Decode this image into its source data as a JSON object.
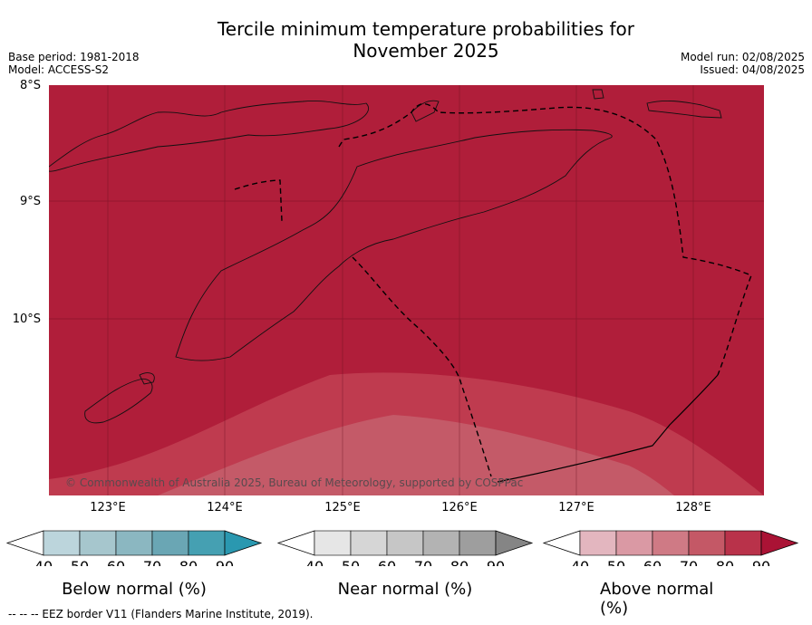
{
  "title_line1": "Tercile minimum temperature probabilities for",
  "title_line2": "November 2025",
  "base_period": "Base period: 1981-2018",
  "model": "Model: ACCESS-S2",
  "model_run": "Model run: 02/08/2025",
  "issued": "Issued: 04/08/2025",
  "lat_labels": [
    "8°S",
    "9°S",
    "10°S"
  ],
  "lon_labels": [
    "123°E",
    "124°E",
    "125°E",
    "126°E",
    "127°E",
    "128°E"
  ],
  "copyright": "© Commonwealth of Australia 2025, Bureau of Meteorology, supported by COSPPac",
  "colors": {
    "above_90": "#b01e3a",
    "above_80": "#bf3b4f",
    "above_70": "#c9566a"
  },
  "legends": [
    {
      "label": "Below normal (%)",
      "ticks": [
        "40",
        "50",
        "60",
        "70",
        "80",
        "90"
      ],
      "colors": [
        "#ffffff",
        "#bcd5dc",
        "#a6c6cd",
        "#8bb7c1",
        "#6aa6b4",
        "#45a0b2",
        "#2a98b0"
      ]
    },
    {
      "label": "Near normal (%)",
      "ticks": [
        "40",
        "50",
        "60",
        "70",
        "80",
        "90"
      ],
      "colors": [
        "#ffffff",
        "#e6e6e6",
        "#d6d6d6",
        "#c6c6c6",
        "#b3b3b3",
        "#9e9e9e",
        "#858585"
      ]
    },
    {
      "label": "Above normal (%)",
      "ticks": [
        "40",
        "50",
        "60",
        "70",
        "80",
        "90"
      ],
      "colors": [
        "#ffffff",
        "#e3b6bf",
        "#da99a4",
        "#cf7a85",
        "#c45866",
        "#b9324a",
        "#aa1335"
      ]
    }
  ],
  "footer": "--  --  -- EEZ border V11 (Flanders Marine Institute, 2019)."
}
